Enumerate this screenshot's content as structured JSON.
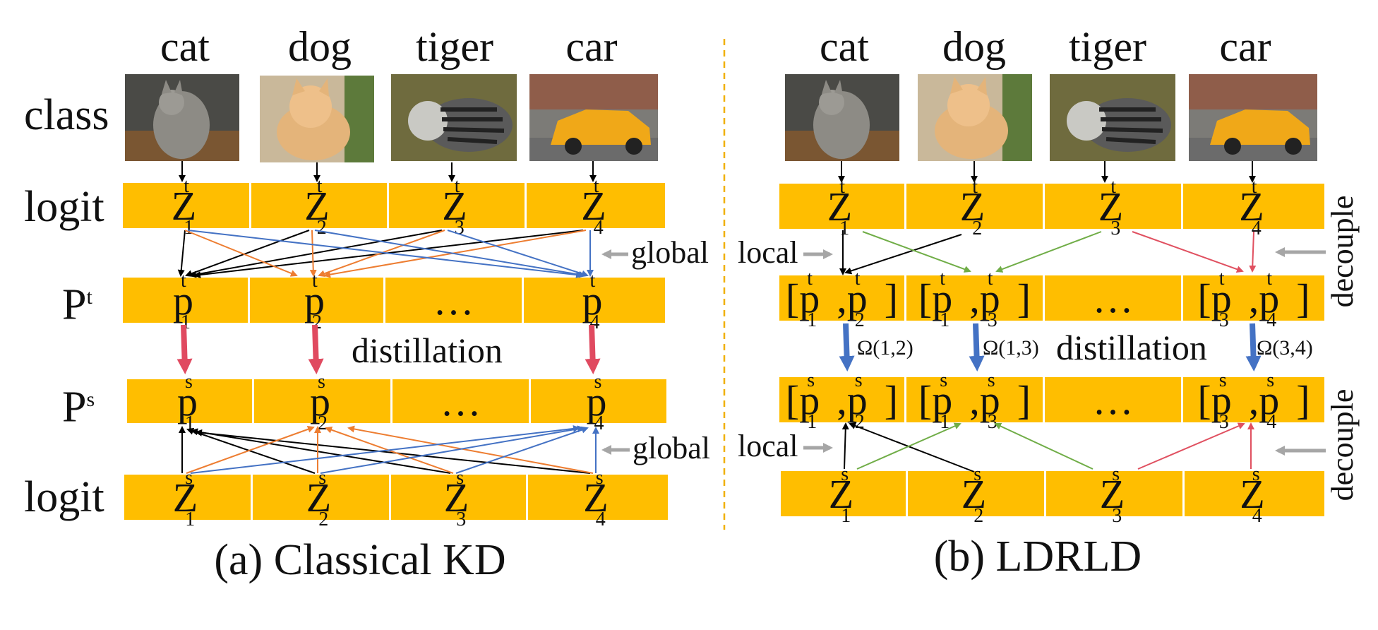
{
  "classes": [
    "cat",
    "dog",
    "tiger",
    "car"
  ],
  "row_labels": {
    "class": "class",
    "logit_t": "logit",
    "p_t_base": "P",
    "p_t_sup": "t",
    "p_s_base": "P",
    "p_s_sup": "s",
    "logit_s": "logit"
  },
  "tokens": {
    "z": "Z",
    "p": "p",
    "t": "t",
    "s": "s",
    "i1": "1",
    "i2": "2",
    "i3": "3",
    "i4": "4",
    "dots": "…",
    "lb": "[",
    "rb": "]",
    "comma": ","
  },
  "side_labels": {
    "global": "global",
    "local": "local",
    "decouple": "decouple",
    "distillation": "distillation"
  },
  "omegas": [
    "Ω(1,2)",
    "Ω(1,3)",
    "Ω(3,4)"
  ],
  "captions": {
    "left": "(a) Classical KD",
    "right": "(b) LDRLD"
  },
  "colors": {
    "bar": "#ffbe00",
    "orange": "#ed7d31",
    "blue": "#4472c4",
    "green": "#70ad47",
    "red": "#e05060",
    "gray": "#a6a6a6",
    "divider": "#f0b000"
  },
  "images": [
    "cat-photo",
    "dog-photo",
    "tiger-photo",
    "car-photo"
  ]
}
